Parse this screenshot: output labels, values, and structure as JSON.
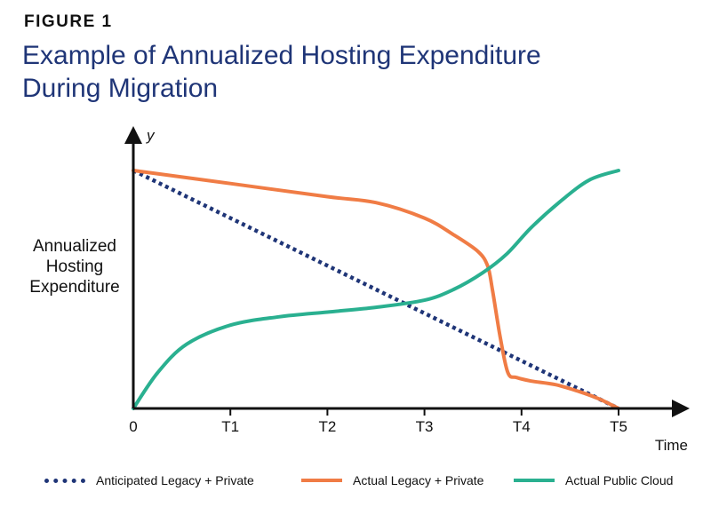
{
  "figure_label": "FIGURE 1",
  "title_line1": "Example of Annualized Hosting Expenditure",
  "title_line2": "During Migration",
  "colors": {
    "anticipated": "#1f3577",
    "actual_legacy": "#f07c45",
    "public_cloud": "#2ab090",
    "axis": "#111111"
  },
  "chart_data": {
    "type": "line",
    "title": "Example of Annualized Hosting Expenditure During Migration",
    "xlabel": "Time",
    "ylabel_lines": [
      "Annualized",
      "Hosting",
      "Expenditure"
    ],
    "y_axis_symbol": "y",
    "categories": [
      "0",
      "T1",
      "T2",
      "T3",
      "T4",
      "T5"
    ],
    "x_range": [
      0,
      5
    ],
    "y_range": [
      0,
      1
    ],
    "grid": false,
    "legend_position": "bottom",
    "series": [
      {
        "name": "Anticipated Legacy + Private",
        "style": "dotted",
        "color": "#1f3577",
        "x": [
          0,
          5
        ],
        "y": [
          1.0,
          0.0
        ]
      },
      {
        "name": "Actual Legacy + Private",
        "style": "solid",
        "color": "#f07c45",
        "x": [
          0,
          1,
          2,
          2.5,
          3,
          3.3,
          3.55,
          3.65,
          3.7,
          3.78,
          3.86,
          3.95,
          4.1,
          4.35,
          4.6,
          4.8,
          5
        ],
        "y": [
          1.0,
          0.945,
          0.89,
          0.865,
          0.8,
          0.73,
          0.66,
          0.6,
          0.5,
          0.3,
          0.15,
          0.13,
          0.115,
          0.1,
          0.07,
          0.04,
          0.0
        ]
      },
      {
        "name": "Actual Public Cloud",
        "style": "solid",
        "color": "#2ab090",
        "x": [
          0,
          0.25,
          0.55,
          1.0,
          1.5,
          2,
          2.5,
          3,
          3.3,
          3.6,
          3.85,
          4.1,
          4.4,
          4.7,
          5
        ],
        "y": [
          0.0,
          0.15,
          0.27,
          0.35,
          0.385,
          0.405,
          0.425,
          0.455,
          0.5,
          0.57,
          0.65,
          0.76,
          0.87,
          0.96,
          1.0
        ]
      }
    ]
  }
}
